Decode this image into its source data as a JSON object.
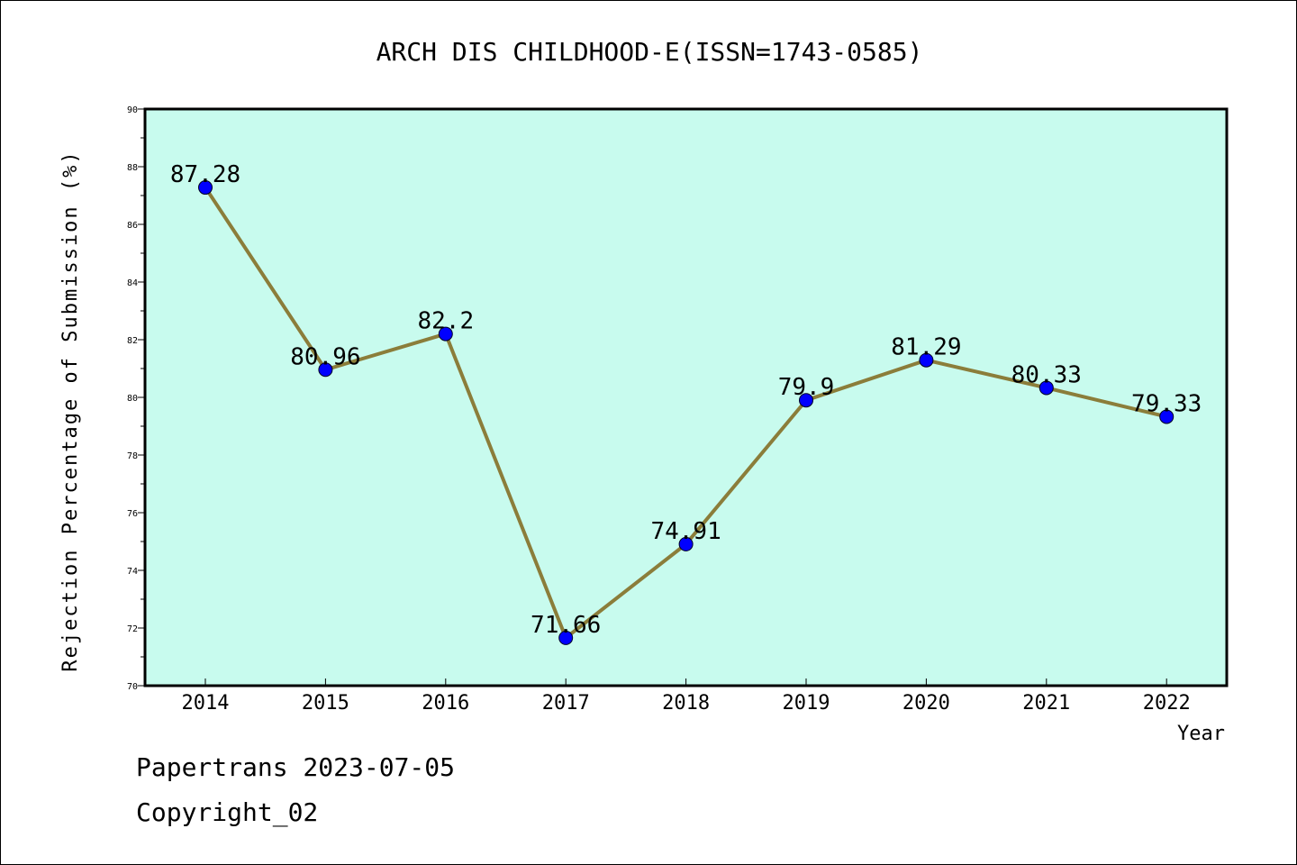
{
  "colors": {
    "plot_background": "#c8fbee",
    "line": "#8b7d3a",
    "marker": "#0000ff"
  },
  "chart_data": {
    "type": "line",
    "title": "ARCH DIS CHILDHOOD-E(ISSN=1743-0585)",
    "xlabel": "Year",
    "ylabel": "Rejection Percentage of Submission (%)",
    "ylim": [
      70,
      90
    ],
    "yticks": [
      70,
      72,
      74,
      76,
      78,
      80,
      82,
      84,
      86,
      88,
      90
    ],
    "categories": [
      "2014",
      "2015",
      "2016",
      "2017",
      "2018",
      "2019",
      "2020",
      "2021",
      "2022"
    ],
    "values": [
      87.28,
      80.96,
      82.2,
      71.66,
      74.91,
      79.9,
      81.29,
      80.33,
      79.33
    ],
    "data_labels": [
      "87.28",
      "80.96",
      "82.2",
      "71.66",
      "74.91",
      "79.9",
      "81.29",
      "80.33",
      "79.33"
    ],
    "grid": false,
    "legend": "none"
  },
  "footer": {
    "line1": "Papertrans 2023-07-05",
    "line2": "Copyright_02"
  }
}
